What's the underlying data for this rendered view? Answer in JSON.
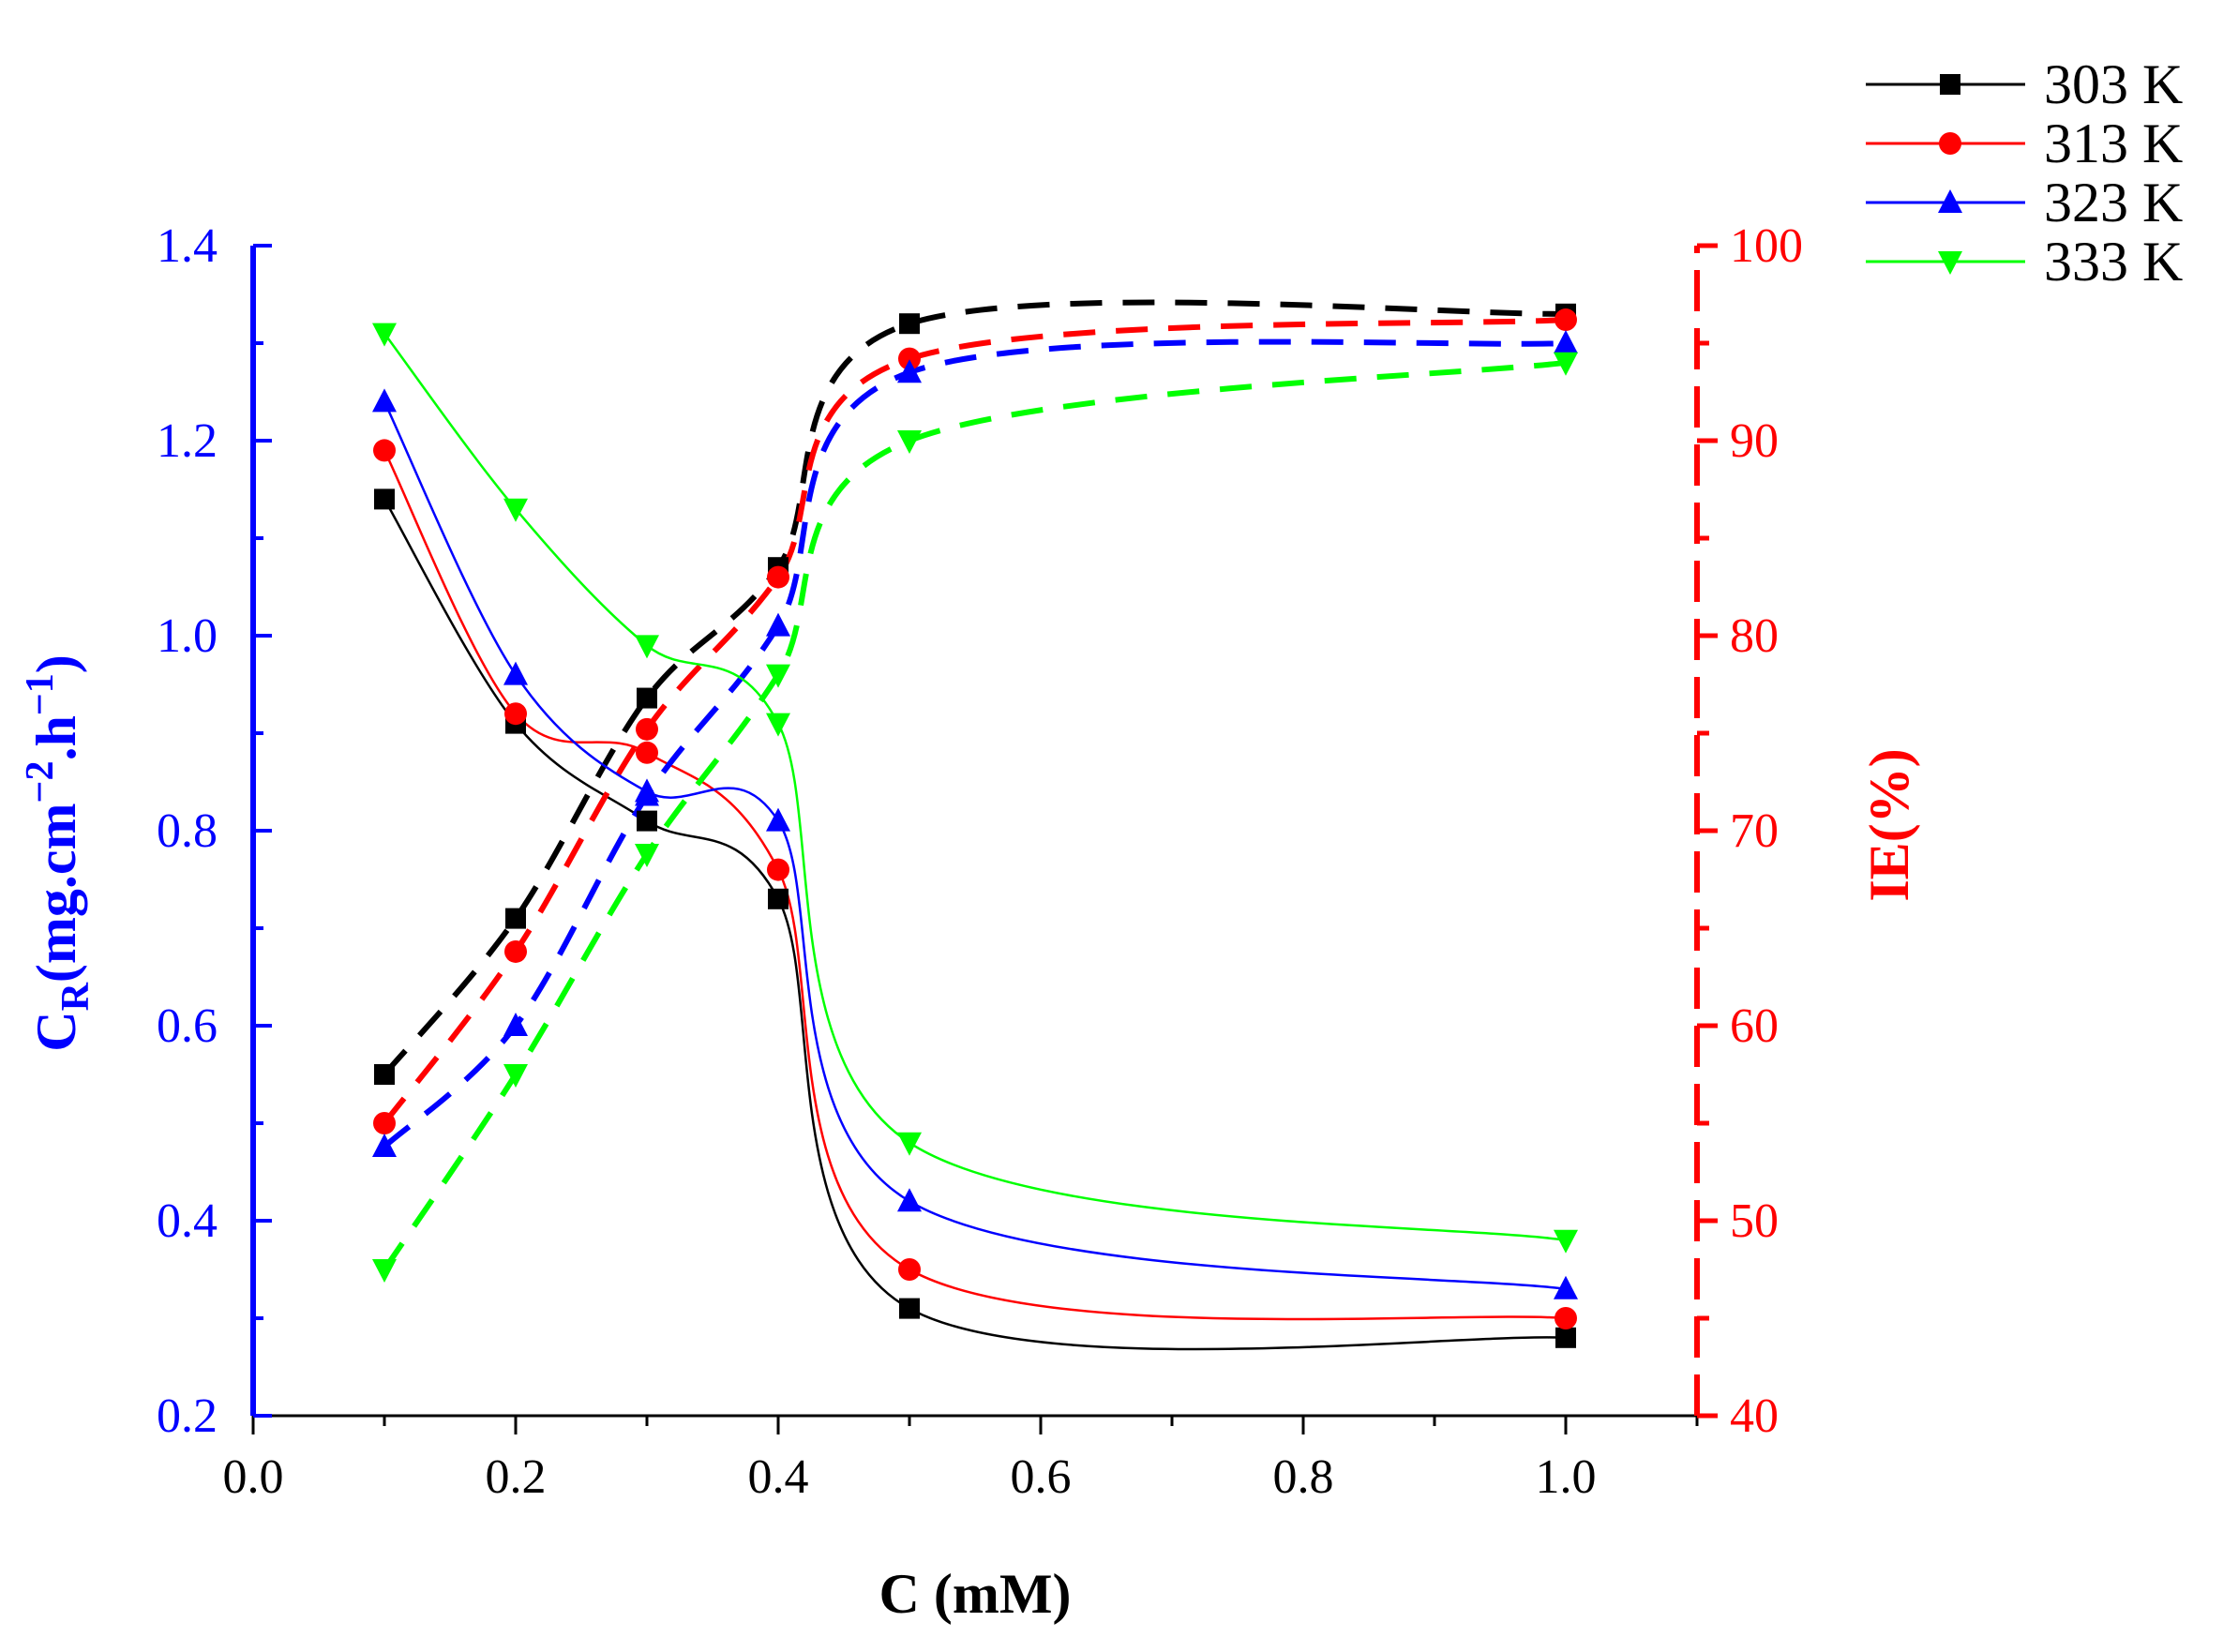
{
  "chart_data": {
    "type": "line",
    "x": [
      0.1,
      0.2,
      0.3,
      0.4,
      0.5,
      1.0
    ],
    "xlabel": "C (mM)",
    "xlim": [
      0.0,
      1.1
    ],
    "xticks": [
      "0.0",
      "0.2",
      "0.4",
      "0.6",
      "0.8",
      "1.0"
    ],
    "y_left": {
      "label_main": "C",
      "label_sub": "R",
      "label_rest": "(mg.cm",
      "label_exp1": "−2",
      "label_mid": ".h",
      "label_exp2": "−1",
      "label_close": ")",
      "ylim": [
        0.2,
        1.4
      ],
      "ticks": [
        "0.2",
        "0.4",
        "0.6",
        "0.8",
        "1.0",
        "1.2",
        "1.4"
      ],
      "color": "#0000ff"
    },
    "y_right": {
      "label": "IE(%)",
      "ylim": [
        40,
        100
      ],
      "ticks": [
        "40",
        "50",
        "60",
        "70",
        "80",
        "90",
        "100"
      ],
      "color": "#ff0000"
    },
    "series": [
      {
        "name": "303 K",
        "color": "#000000",
        "marker": "square",
        "cr": [
          1.14,
          0.91,
          0.81,
          0.73,
          0.31,
          0.28
        ],
        "ie": [
          57.5,
          65.5,
          76.8,
          83.5,
          96.0,
          96.5
        ]
      },
      {
        "name": "313 K",
        "color": "#ff0000",
        "marker": "circle",
        "cr": [
          1.19,
          0.92,
          0.88,
          0.76,
          0.35,
          0.3
        ],
        "ie": [
          55.0,
          63.8,
          75.2,
          83.0,
          94.2,
          96.2
        ]
      },
      {
        "name": "323 K",
        "color": "#0000ff",
        "marker": "triangle-up",
        "cr": [
          1.24,
          0.96,
          0.84,
          0.81,
          0.42,
          0.33
        ],
        "ie": [
          53.8,
          60.0,
          71.8,
          80.5,
          93.5,
          95.0
        ]
      },
      {
        "name": "333 K",
        "color": "#00ff00",
        "marker": "triangle-down",
        "cr": [
          1.31,
          1.13,
          0.99,
          0.91,
          0.48,
          0.38
        ],
        "ie": [
          47.5,
          57.5,
          68.8,
          78.0,
          90.0,
          94.0
        ]
      }
    ]
  }
}
